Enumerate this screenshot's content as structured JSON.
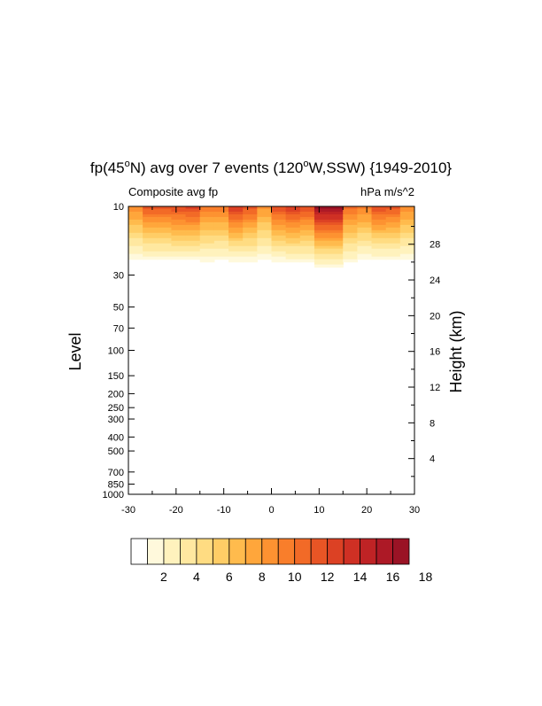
{
  "chart_data": {
    "type": "heatmap",
    "title": "fp(45°N) avg over 7 events (120°W,SSW) {1949-2010}",
    "title_parts": {
      "a": "fp(45",
      "b": "o",
      "c": "N) avg over 7 events (120",
      "d": "o",
      "e": "W,SSW) {1949-2010}"
    },
    "left_string": "Composite avg fp",
    "right_string": "hPa m/s^2",
    "xlabel": "",
    "ylabel": "Level",
    "ylabel_right": "Height (km)",
    "y_scale": "log",
    "y_reversed": true,
    "xlim": [
      -30,
      30
    ],
    "ylim": [
      1000,
      10
    ],
    "x_ticks": [
      -30,
      -20,
      -10,
      0,
      10,
      20,
      30
    ],
    "x_tick_labels": [
      "-30",
      "-20",
      "-10",
      "0",
      "10",
      "20",
      "30"
    ],
    "y_ticks": [
      10,
      30,
      50,
      70,
      100,
      150,
      200,
      250,
      300,
      400,
      500,
      700,
      850,
      1000
    ],
    "y_tick_labels": [
      "10",
      "30",
      "50",
      "70",
      "100",
      "150",
      "200",
      "250",
      "300",
      "400",
      "500",
      "700",
      "850",
      "1000"
    ],
    "y_right_ticks": [
      4,
      8,
      12,
      16,
      20,
      24,
      28
    ],
    "y_right_tick_labels": [
      "4",
      "8",
      "12",
      "16",
      "20",
      "24",
      "28"
    ],
    "x": [
      -30,
      -27,
      -24,
      -21,
      -18,
      -15,
      -12,
      -9,
      -6,
      -3,
      0,
      3,
      6,
      9,
      12,
      15,
      18,
      21,
      24,
      27,
      30
    ],
    "value_at_10hPa": [
      7,
      9,
      12,
      9,
      13,
      10,
      8,
      10,
      14,
      7,
      8,
      14,
      10,
      12,
      19,
      12,
      7,
      10,
      12,
      9,
      7
    ],
    "field_extent_hPa": [
      25,
      26,
      25,
      26,
      25,
      26,
      26,
      25,
      26,
      26,
      25,
      26,
      26,
      27,
      28,
      27,
      26,
      25,
      25,
      25,
      25
    ],
    "colorbar": {
      "labels": [
        "2",
        "4",
        "6",
        "8",
        "10",
        "12",
        "14",
        "16",
        "18"
      ],
      "colors": [
        "#ffffff",
        "#fff9dc",
        "#fff2bd",
        "#ffe8a0",
        "#ffdc82",
        "#ffcd66",
        "#ffbb4d",
        "#ffa63b",
        "#fd9231",
        "#f97e2b",
        "#f26a27",
        "#e85525",
        "#dc4124",
        "#cf3024",
        "#bf2325",
        "#ad1926",
        "#9a1325"
      ]
    },
    "grid": false,
    "legend": "colorbar-bottom"
  }
}
